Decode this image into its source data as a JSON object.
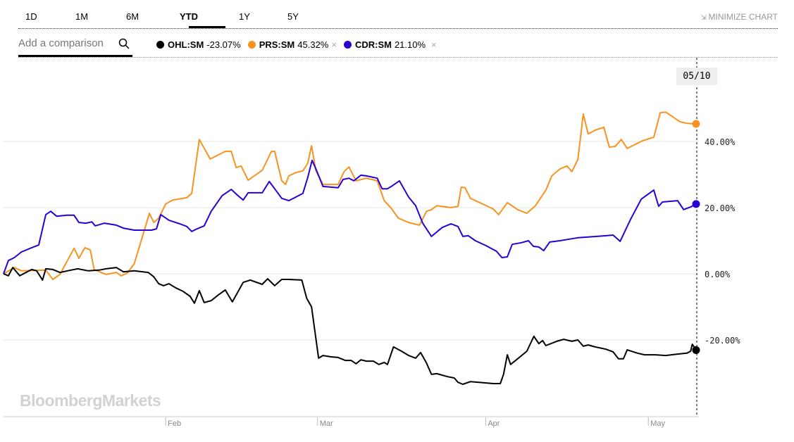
{
  "tabs": [
    "1D",
    "1M",
    "6M",
    "YTD",
    "1Y",
    "5Y"
  ],
  "active_tab": "YTD",
  "minimize_label": "MINIMIZE CHART",
  "comparison": {
    "placeholder": "Add a comparison"
  },
  "legend": [
    {
      "ticker": "OHL:SM",
      "change": "-23.07%",
      "color": "#000000",
      "removable": false
    },
    {
      "ticker": "PRS:SM",
      "change": "45.32%",
      "color": "#f7931e",
      "removable": true
    },
    {
      "ticker": "CDR:SM",
      "change": "21.10%",
      "color": "#2a00d4",
      "removable": true
    }
  ],
  "remove_glyph": "×",
  "hover_date": "05/10",
  "watermark": "BloombergMarkets",
  "chart_data": {
    "type": "line",
    "x_unit": "day of year",
    "xlim": [
      2.1,
      129.8
    ],
    "ylim": [
      -42,
      62
    ],
    "y_ticks": [
      {
        "v": 40,
        "label": "40.00%"
      },
      {
        "v": 20,
        "label": "20.00%"
      },
      {
        "v": 0,
        "label": "0.00%"
      },
      {
        "v": -20,
        "label": "-20.00%"
      }
    ],
    "x_ticks": [
      {
        "d": 32,
        "label": "Feb"
      },
      {
        "d": 60,
        "label": "Mar"
      },
      {
        "d": 91,
        "label": "Apr"
      },
      {
        "d": 121,
        "label": "May"
      }
    ],
    "grid": true,
    "series": [
      {
        "name": "PRS:SM",
        "color": "#f7931e",
        "points": [
          [
            2.1,
            0
          ],
          [
            4.1,
            1.9
          ],
          [
            5.4,
            0.9
          ],
          [
            9.9,
            1.1
          ],
          [
            11.2,
            -1.7
          ],
          [
            12.5,
            -0.2
          ],
          [
            15.1,
            7.7
          ],
          [
            16.0,
            4.7
          ],
          [
            17.1,
            7.9
          ],
          [
            18.1,
            7.2
          ],
          [
            18.8,
            1.3
          ],
          [
            21.0,
            -0.2
          ],
          [
            22.9,
            0.4
          ],
          [
            23.8,
            -0.6
          ],
          [
            24.9,
            0.2
          ],
          [
            26.2,
            3.0
          ],
          [
            29.0,
            18.3
          ],
          [
            29.8,
            15.5
          ],
          [
            30.7,
            16.8
          ],
          [
            32.0,
            21.1
          ],
          [
            33.3,
            22.3
          ],
          [
            35.9,
            23.0
          ],
          [
            36.8,
            24.3
          ],
          [
            38.2,
            40.6
          ],
          [
            40.2,
            34.7
          ],
          [
            43.0,
            37.0
          ],
          [
            44.1,
            37.0
          ],
          [
            45.0,
            32.1
          ],
          [
            45.9,
            32.6
          ],
          [
            47.2,
            28.3
          ],
          [
            49.8,
            31.3
          ],
          [
            51.5,
            37.0
          ],
          [
            52.1,
            37.0
          ],
          [
            53.4,
            28.1
          ],
          [
            54.1,
            27.0
          ],
          [
            54.7,
            29.6
          ],
          [
            56.0,
            30.6
          ],
          [
            57.3,
            31.1
          ],
          [
            58.2,
            33.4
          ],
          [
            58.9,
            38.7
          ],
          [
            59.7,
            31.1
          ],
          [
            61.0,
            27.0
          ],
          [
            63.8,
            27.0
          ],
          [
            64.9,
            30.9
          ],
          [
            65.8,
            32.3
          ],
          [
            67.1,
            28.1
          ],
          [
            69.0,
            28.9
          ],
          [
            71.0,
            28.1
          ],
          [
            72.3,
            22.1
          ],
          [
            73.6,
            19.8
          ],
          [
            74.9,
            16.8
          ],
          [
            76.8,
            15.5
          ],
          [
            78.8,
            14.7
          ],
          [
            80.1,
            18.9
          ],
          [
            81.0,
            19.4
          ],
          [
            82.0,
            20.6
          ],
          [
            84.6,
            20.0
          ],
          [
            85.9,
            20.4
          ],
          [
            86.5,
            26.2
          ],
          [
            87.2,
            26.0
          ],
          [
            88.2,
            22.8
          ],
          [
            92.4,
            19.6
          ],
          [
            93.4,
            17.9
          ],
          [
            95.0,
            21.5
          ],
          [
            96.9,
            19.4
          ],
          [
            98.6,
            18.3
          ],
          [
            100.2,
            20.6
          ],
          [
            102.1,
            25.3
          ],
          [
            103.2,
            29.6
          ],
          [
            104.7,
            31.7
          ],
          [
            106.0,
            32.6
          ],
          [
            106.9,
            30.9
          ],
          [
            108.0,
            34.5
          ],
          [
            109.0,
            48.3
          ],
          [
            109.9,
            42.3
          ],
          [
            111.2,
            43.4
          ],
          [
            112.8,
            44.3
          ],
          [
            113.8,
            38.3
          ],
          [
            114.9,
            38.5
          ],
          [
            116.0,
            40.6
          ],
          [
            117.1,
            37.9
          ],
          [
            119.9,
            40.2
          ],
          [
            122.0,
            41.3
          ],
          [
            123.2,
            48.7
          ],
          [
            124.2,
            48.9
          ],
          [
            126.8,
            46.0
          ],
          [
            128.1,
            45.5
          ],
          [
            129.8,
            45.32
          ]
        ]
      },
      {
        "name": "CDR:SM",
        "color": "#2a00d4",
        "points": [
          [
            2.1,
            0
          ],
          [
            3.0,
            4.0
          ],
          [
            4.1,
            4.9
          ],
          [
            5.4,
            6.6
          ],
          [
            7.3,
            7.9
          ],
          [
            8.6,
            8.7
          ],
          [
            9.9,
            17.9
          ],
          [
            10.8,
            18.9
          ],
          [
            11.9,
            17.4
          ],
          [
            13.8,
            17.7
          ],
          [
            15.1,
            17.7
          ],
          [
            16.0,
            15.5
          ],
          [
            17.3,
            15.3
          ],
          [
            18.4,
            15.7
          ],
          [
            19.0,
            14.5
          ],
          [
            20.7,
            15.3
          ],
          [
            22.9,
            14.7
          ],
          [
            24.2,
            13.8
          ],
          [
            26.2,
            13.2
          ],
          [
            29.4,
            13.2
          ],
          [
            30.3,
            13.6
          ],
          [
            31.1,
            17.9
          ],
          [
            32.6,
            16.2
          ],
          [
            34.6,
            15.1
          ],
          [
            35.9,
            14.3
          ],
          [
            36.8,
            12.8
          ],
          [
            37.8,
            13.6
          ],
          [
            39.1,
            14.5
          ],
          [
            40.4,
            18.9
          ],
          [
            42.4,
            23.6
          ],
          [
            44.1,
            25.5
          ],
          [
            45.2,
            23.8
          ],
          [
            46.3,
            22.3
          ],
          [
            47.2,
            24.5
          ],
          [
            49.8,
            24.5
          ],
          [
            51.1,
            27.9
          ],
          [
            52.1,
            25.7
          ],
          [
            53.4,
            22.8
          ],
          [
            54.7,
            22.1
          ],
          [
            56.0,
            23.2
          ],
          [
            57.3,
            24.3
          ],
          [
            58.2,
            29.1
          ],
          [
            59.0,
            34.3
          ],
          [
            59.7,
            31.7
          ],
          [
            61.0,
            26.4
          ],
          [
            62.5,
            26.2
          ],
          [
            63.8,
            26.0
          ],
          [
            64.7,
            28.5
          ],
          [
            65.8,
            28.9
          ],
          [
            66.7,
            28.1
          ],
          [
            68.0,
            29.8
          ],
          [
            69.0,
            29.6
          ],
          [
            71.0,
            28.9
          ],
          [
            71.9,
            25.7
          ],
          [
            72.9,
            25.7
          ],
          [
            73.6,
            26.4
          ],
          [
            75.1,
            28.1
          ],
          [
            76.8,
            23.2
          ],
          [
            78.1,
            20.6
          ],
          [
            79.4,
            15.3
          ],
          [
            81.0,
            11.3
          ],
          [
            83.0,
            14.0
          ],
          [
            84.6,
            15.1
          ],
          [
            85.9,
            14.3
          ],
          [
            86.8,
            11.3
          ],
          [
            87.8,
            11.5
          ],
          [
            89.1,
            10.0
          ],
          [
            91.1,
            8.5
          ],
          [
            93.0,
            6.8
          ],
          [
            94.0,
            4.9
          ],
          [
            95.0,
            5.1
          ],
          [
            95.9,
            8.9
          ],
          [
            97.6,
            9.4
          ],
          [
            98.9,
            10.0
          ],
          [
            99.8,
            8.3
          ],
          [
            100.8,
            8.1
          ],
          [
            101.7,
            7.0
          ],
          [
            102.8,
            9.6
          ],
          [
            104.7,
            10.0
          ],
          [
            106.9,
            10.6
          ],
          [
            108.0,
            10.9
          ],
          [
            109.9,
            11.1
          ],
          [
            113.2,
            11.5
          ],
          [
            114.5,
            11.7
          ],
          [
            115.8,
            9.8
          ],
          [
            117.7,
            16.4
          ],
          [
            119.7,
            22.6
          ],
          [
            122.0,
            25.3
          ],
          [
            122.9,
            20.4
          ],
          [
            123.6,
            21.7
          ],
          [
            126.4,
            22.1
          ],
          [
            127.5,
            19.4
          ],
          [
            128.8,
            20.2
          ],
          [
            129.8,
            21.1
          ]
        ]
      },
      {
        "name": "OHL:SM",
        "color": "#000000",
        "points": [
          [
            2.1,
            0
          ],
          [
            3.0,
            -0.6
          ],
          [
            3.8,
            1.9
          ],
          [
            5.1,
            -0.6
          ],
          [
            7.3,
            1.3
          ],
          [
            8.2,
            0.9
          ],
          [
            9.3,
            -1.9
          ],
          [
            9.9,
            1.5
          ],
          [
            11.2,
            1.3
          ],
          [
            12.5,
            0.4
          ],
          [
            14.5,
            1.1
          ],
          [
            15.8,
            1.5
          ],
          [
            17.7,
            0.9
          ],
          [
            19.7,
            1.1
          ],
          [
            21.0,
            1.5
          ],
          [
            22.9,
            1.9
          ],
          [
            24.2,
            0.6
          ],
          [
            26.2,
            0.9
          ],
          [
            28.8,
            0.4
          ],
          [
            29.8,
            -0.9
          ],
          [
            30.7,
            -3.0
          ],
          [
            31.6,
            -3.6
          ],
          [
            32.6,
            -3.0
          ],
          [
            33.9,
            -4.3
          ],
          [
            35.2,
            -5.3
          ],
          [
            36.5,
            -6.8
          ],
          [
            37.3,
            -8.9
          ],
          [
            38.2,
            -5.1
          ],
          [
            39.1,
            -8.7
          ],
          [
            40.4,
            -8.1
          ],
          [
            41.7,
            -6.4
          ],
          [
            43.0,
            -4.9
          ],
          [
            44.3,
            -8.5
          ],
          [
            46.3,
            -2.6
          ],
          [
            47.6,
            -1.9
          ],
          [
            49.8,
            -3.2
          ],
          [
            50.8,
            -1.5
          ],
          [
            52.1,
            -3.6
          ],
          [
            53.4,
            -1.7
          ],
          [
            54.7,
            -1.7
          ],
          [
            57.1,
            -1.9
          ],
          [
            58.0,
            -7.4
          ],
          [
            58.9,
            -10.0
          ],
          [
            60.2,
            -25.5
          ],
          [
            61.0,
            -24.7
          ],
          [
            62.5,
            -25.1
          ],
          [
            63.8,
            -25.3
          ],
          [
            65.1,
            -26.2
          ],
          [
            66.2,
            -26.2
          ],
          [
            67.1,
            -27.2
          ],
          [
            68.0,
            -26.0
          ],
          [
            69.0,
            -26.4
          ],
          [
            70.3,
            -26.4
          ],
          [
            71.3,
            -27.4
          ],
          [
            72.3,
            -26.8
          ],
          [
            72.9,
            -27.4
          ],
          [
            74.0,
            -22.1
          ],
          [
            75.5,
            -23.4
          ],
          [
            76.8,
            -24.7
          ],
          [
            78.1,
            -25.5
          ],
          [
            79.0,
            -23.8
          ],
          [
            80.1,
            -27.0
          ],
          [
            81.0,
            -30.4
          ],
          [
            82.0,
            -30.2
          ],
          [
            84.0,
            -31.1
          ],
          [
            85.2,
            -31.5
          ],
          [
            85.9,
            -32.8
          ],
          [
            86.8,
            -33.4
          ],
          [
            88.2,
            -32.6
          ],
          [
            89.8,
            -32.8
          ],
          [
            92.4,
            -33.2
          ],
          [
            93.7,
            -33.2
          ],
          [
            94.3,
            -30.4
          ],
          [
            95.0,
            -24.5
          ],
          [
            95.6,
            -27.4
          ],
          [
            96.9,
            -25.7
          ],
          [
            98.6,
            -23.4
          ],
          [
            99.9,
            -18.9
          ],
          [
            100.8,
            -21.1
          ],
          [
            101.5,
            -20.2
          ],
          [
            102.1,
            -21.7
          ],
          [
            104.1,
            -20.4
          ],
          [
            105.4,
            -19.8
          ],
          [
            106.9,
            -20.4
          ],
          [
            108.0,
            -20.0
          ],
          [
            109.0,
            -21.9
          ],
          [
            109.9,
            -21.5
          ],
          [
            111.2,
            -22.1
          ],
          [
            113.2,
            -22.8
          ],
          [
            114.5,
            -23.6
          ],
          [
            115.5,
            -25.7
          ],
          [
            116.4,
            -25.7
          ],
          [
            117.1,
            -23.0
          ],
          [
            119.0,
            -24.0
          ],
          [
            120.3,
            -24.5
          ],
          [
            122.3,
            -24.5
          ],
          [
            124.2,
            -24.7
          ],
          [
            126.2,
            -24.3
          ],
          [
            128.1,
            -24.0
          ],
          [
            128.8,
            -23.4
          ],
          [
            129.1,
            -21.3
          ],
          [
            129.8,
            -23.07
          ]
        ]
      }
    ]
  }
}
